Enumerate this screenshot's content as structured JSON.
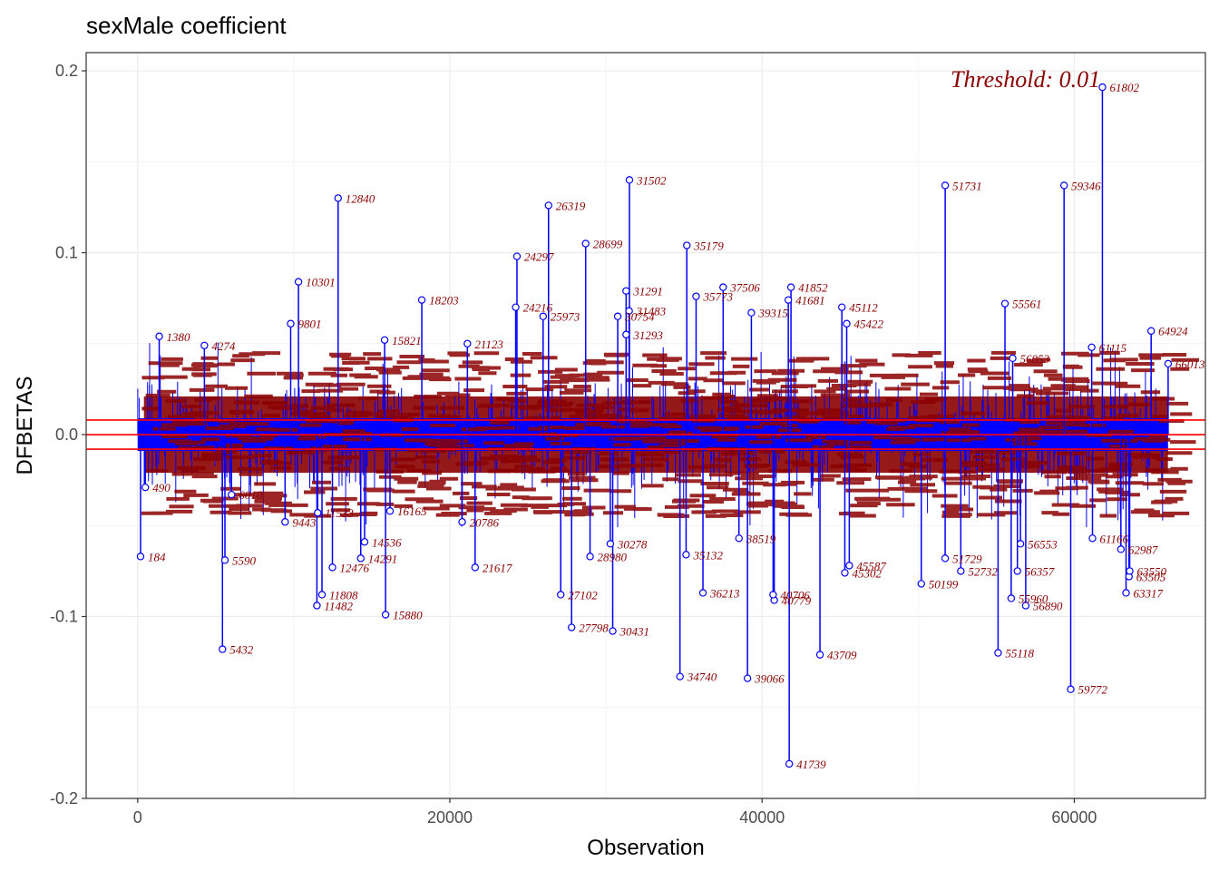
{
  "chart_data": {
    "type": "scatter",
    "title": "sexMale coefficient",
    "xlabel": "Observation",
    "ylabel": "DFBETAS",
    "annotation": "Threshold: 0.01",
    "threshold": 0.008,
    "xlim": [
      -3300,
      68400
    ],
    "ylim": [
      -0.2,
      0.21
    ],
    "x_ticks": [
      0,
      20000,
      40000,
      60000
    ],
    "x_tick_labels": [
      "0",
      "20000",
      "40000",
      "60000"
    ],
    "y_ticks": [
      -0.2,
      -0.1,
      0.0,
      0.1,
      0.2
    ],
    "y_tick_labels": [
      "-0.2",
      "-0.1",
      "0.0",
      "0.1",
      "0.2"
    ],
    "grid": true,
    "n_observations": 66000,
    "colors": {
      "stem": "#0000ff",
      "label": "#8b0000",
      "threshold": "#ff0000",
      "grid": "#ebebeb"
    },
    "labeled_points": [
      {
        "x": 61802,
        "y": 0.191,
        "label": "61802"
      },
      {
        "x": 31502,
        "y": 0.14,
        "label": "31502"
      },
      {
        "x": 51731,
        "y": 0.137,
        "label": "51731"
      },
      {
        "x": 59346,
        "y": 0.137,
        "label": "59346"
      },
      {
        "x": 12840,
        "y": 0.13,
        "label": "12840"
      },
      {
        "x": 26319,
        "y": 0.126,
        "label": "26319"
      },
      {
        "x": 28699,
        "y": 0.105,
        "label": "28699"
      },
      {
        "x": 35179,
        "y": 0.104,
        "label": "35179"
      },
      {
        "x": 24297,
        "y": 0.098,
        "label": "24297"
      },
      {
        "x": 10301,
        "y": 0.084,
        "label": "10301"
      },
      {
        "x": 41852,
        "y": 0.081,
        "label": "41852"
      },
      {
        "x": 37506,
        "y": 0.081,
        "label": "37506"
      },
      {
        "x": 31291,
        "y": 0.079,
        "label": "31291"
      },
      {
        "x": 55561,
        "y": 0.072,
        "label": "55561"
      },
      {
        "x": 35773,
        "y": 0.076,
        "label": "35773"
      },
      {
        "x": 18203,
        "y": 0.074,
        "label": "18203"
      },
      {
        "x": 41681,
        "y": 0.074,
        "label": "41681"
      },
      {
        "x": 24216,
        "y": 0.07,
        "label": "24216"
      },
      {
        "x": 45112,
        "y": 0.07,
        "label": "45112"
      },
      {
        "x": 31483,
        "y": 0.068,
        "label": "31483"
      },
      {
        "x": 39315,
        "y": 0.067,
        "label": "39315"
      },
      {
        "x": 25973,
        "y": 0.065,
        "label": "25973"
      },
      {
        "x": 30754,
        "y": 0.065,
        "label": "30754"
      },
      {
        "x": 45422,
        "y": 0.061,
        "label": "45422"
      },
      {
        "x": 9801,
        "y": 0.061,
        "label": "9801"
      },
      {
        "x": 64924,
        "y": 0.057,
        "label": "64924"
      },
      {
        "x": 31293,
        "y": 0.055,
        "label": "31293"
      },
      {
        "x": 1380,
        "y": 0.054,
        "label": "1380"
      },
      {
        "x": 15821,
        "y": 0.052,
        "label": "15821"
      },
      {
        "x": 21123,
        "y": 0.05,
        "label": "21123"
      },
      {
        "x": 4274,
        "y": 0.049,
        "label": "4274"
      },
      {
        "x": 61115,
        "y": 0.048,
        "label": "61115"
      },
      {
        "x": 66013,
        "y": 0.039,
        "label": "66013"
      },
      {
        "x": 56053,
        "y": 0.042,
        "label": "56053"
      },
      {
        "x": 41739,
        "y": -0.181,
        "label": "41739"
      },
      {
        "x": 59772,
        "y": -0.14,
        "label": "59772"
      },
      {
        "x": 34740,
        "y": -0.133,
        "label": "34740"
      },
      {
        "x": 39066,
        "y": -0.134,
        "label": "39066"
      },
      {
        "x": 43709,
        "y": -0.121,
        "label": "43709"
      },
      {
        "x": 55118,
        "y": -0.12,
        "label": "55118"
      },
      {
        "x": 5432,
        "y": -0.118,
        "label": "5432"
      },
      {
        "x": 30431,
        "y": -0.108,
        "label": "30431"
      },
      {
        "x": 27798,
        "y": -0.106,
        "label": "27798"
      },
      {
        "x": 15880,
        "y": -0.099,
        "label": "15880"
      },
      {
        "x": 11482,
        "y": -0.094,
        "label": "11482"
      },
      {
        "x": 40779,
        "y": -0.091,
        "label": "40779"
      },
      {
        "x": 55960,
        "y": -0.09,
        "label": "55960"
      },
      {
        "x": 56890,
        "y": -0.094,
        "label": "56890"
      },
      {
        "x": 11808,
        "y": -0.088,
        "label": "11808"
      },
      {
        "x": 40706,
        "y": -0.088,
        "label": "40706"
      },
      {
        "x": 27102,
        "y": -0.088,
        "label": "27102"
      },
      {
        "x": 36213,
        "y": -0.087,
        "label": "36213"
      },
      {
        "x": 63317,
        "y": -0.087,
        "label": "63317"
      },
      {
        "x": 50199,
        "y": -0.082,
        "label": "50199"
      },
      {
        "x": 63505,
        "y": -0.078,
        "label": "63505"
      },
      {
        "x": 45302,
        "y": -0.076,
        "label": "45302"
      },
      {
        "x": 63550,
        "y": -0.075,
        "label": "63550"
      },
      {
        "x": 52732,
        "y": -0.075,
        "label": "52732"
      },
      {
        "x": 21617,
        "y": -0.073,
        "label": "21617"
      },
      {
        "x": 56357,
        "y": -0.075,
        "label": "56357"
      },
      {
        "x": 12476,
        "y": -0.073,
        "label": "12476"
      },
      {
        "x": 45587,
        "y": -0.072,
        "label": "45587"
      },
      {
        "x": 5590,
        "y": -0.069,
        "label": "5590"
      },
      {
        "x": 51729,
        "y": -0.068,
        "label": "51729"
      },
      {
        "x": 184,
        "y": -0.067,
        "label": "184"
      },
      {
        "x": 28980,
        "y": -0.067,
        "label": "28980"
      },
      {
        "x": 35132,
        "y": -0.066,
        "label": "35132"
      },
      {
        "x": 14291,
        "y": -0.068,
        "label": "14291"
      },
      {
        "x": 62987,
        "y": -0.063,
        "label": "62987"
      },
      {
        "x": 56553,
        "y": -0.06,
        "label": "56553"
      },
      {
        "x": 14536,
        "y": -0.059,
        "label": "14536"
      },
      {
        "x": 61166,
        "y": -0.057,
        "label": "61166"
      },
      {
        "x": 38519,
        "y": -0.057,
        "label": "38519"
      },
      {
        "x": 30278,
        "y": -0.06,
        "label": "30278"
      },
      {
        "x": 11533,
        "y": -0.043,
        "label": "11533"
      },
      {
        "x": 9443,
        "y": -0.048,
        "label": "9443"
      },
      {
        "x": 20786,
        "y": -0.048,
        "label": "20786"
      },
      {
        "x": 16165,
        "y": -0.042,
        "label": "16165"
      },
      {
        "x": 6010,
        "y": -0.033,
        "label": "6010"
      },
      {
        "x": 490,
        "y": -0.029,
        "label": "490"
      }
    ]
  }
}
